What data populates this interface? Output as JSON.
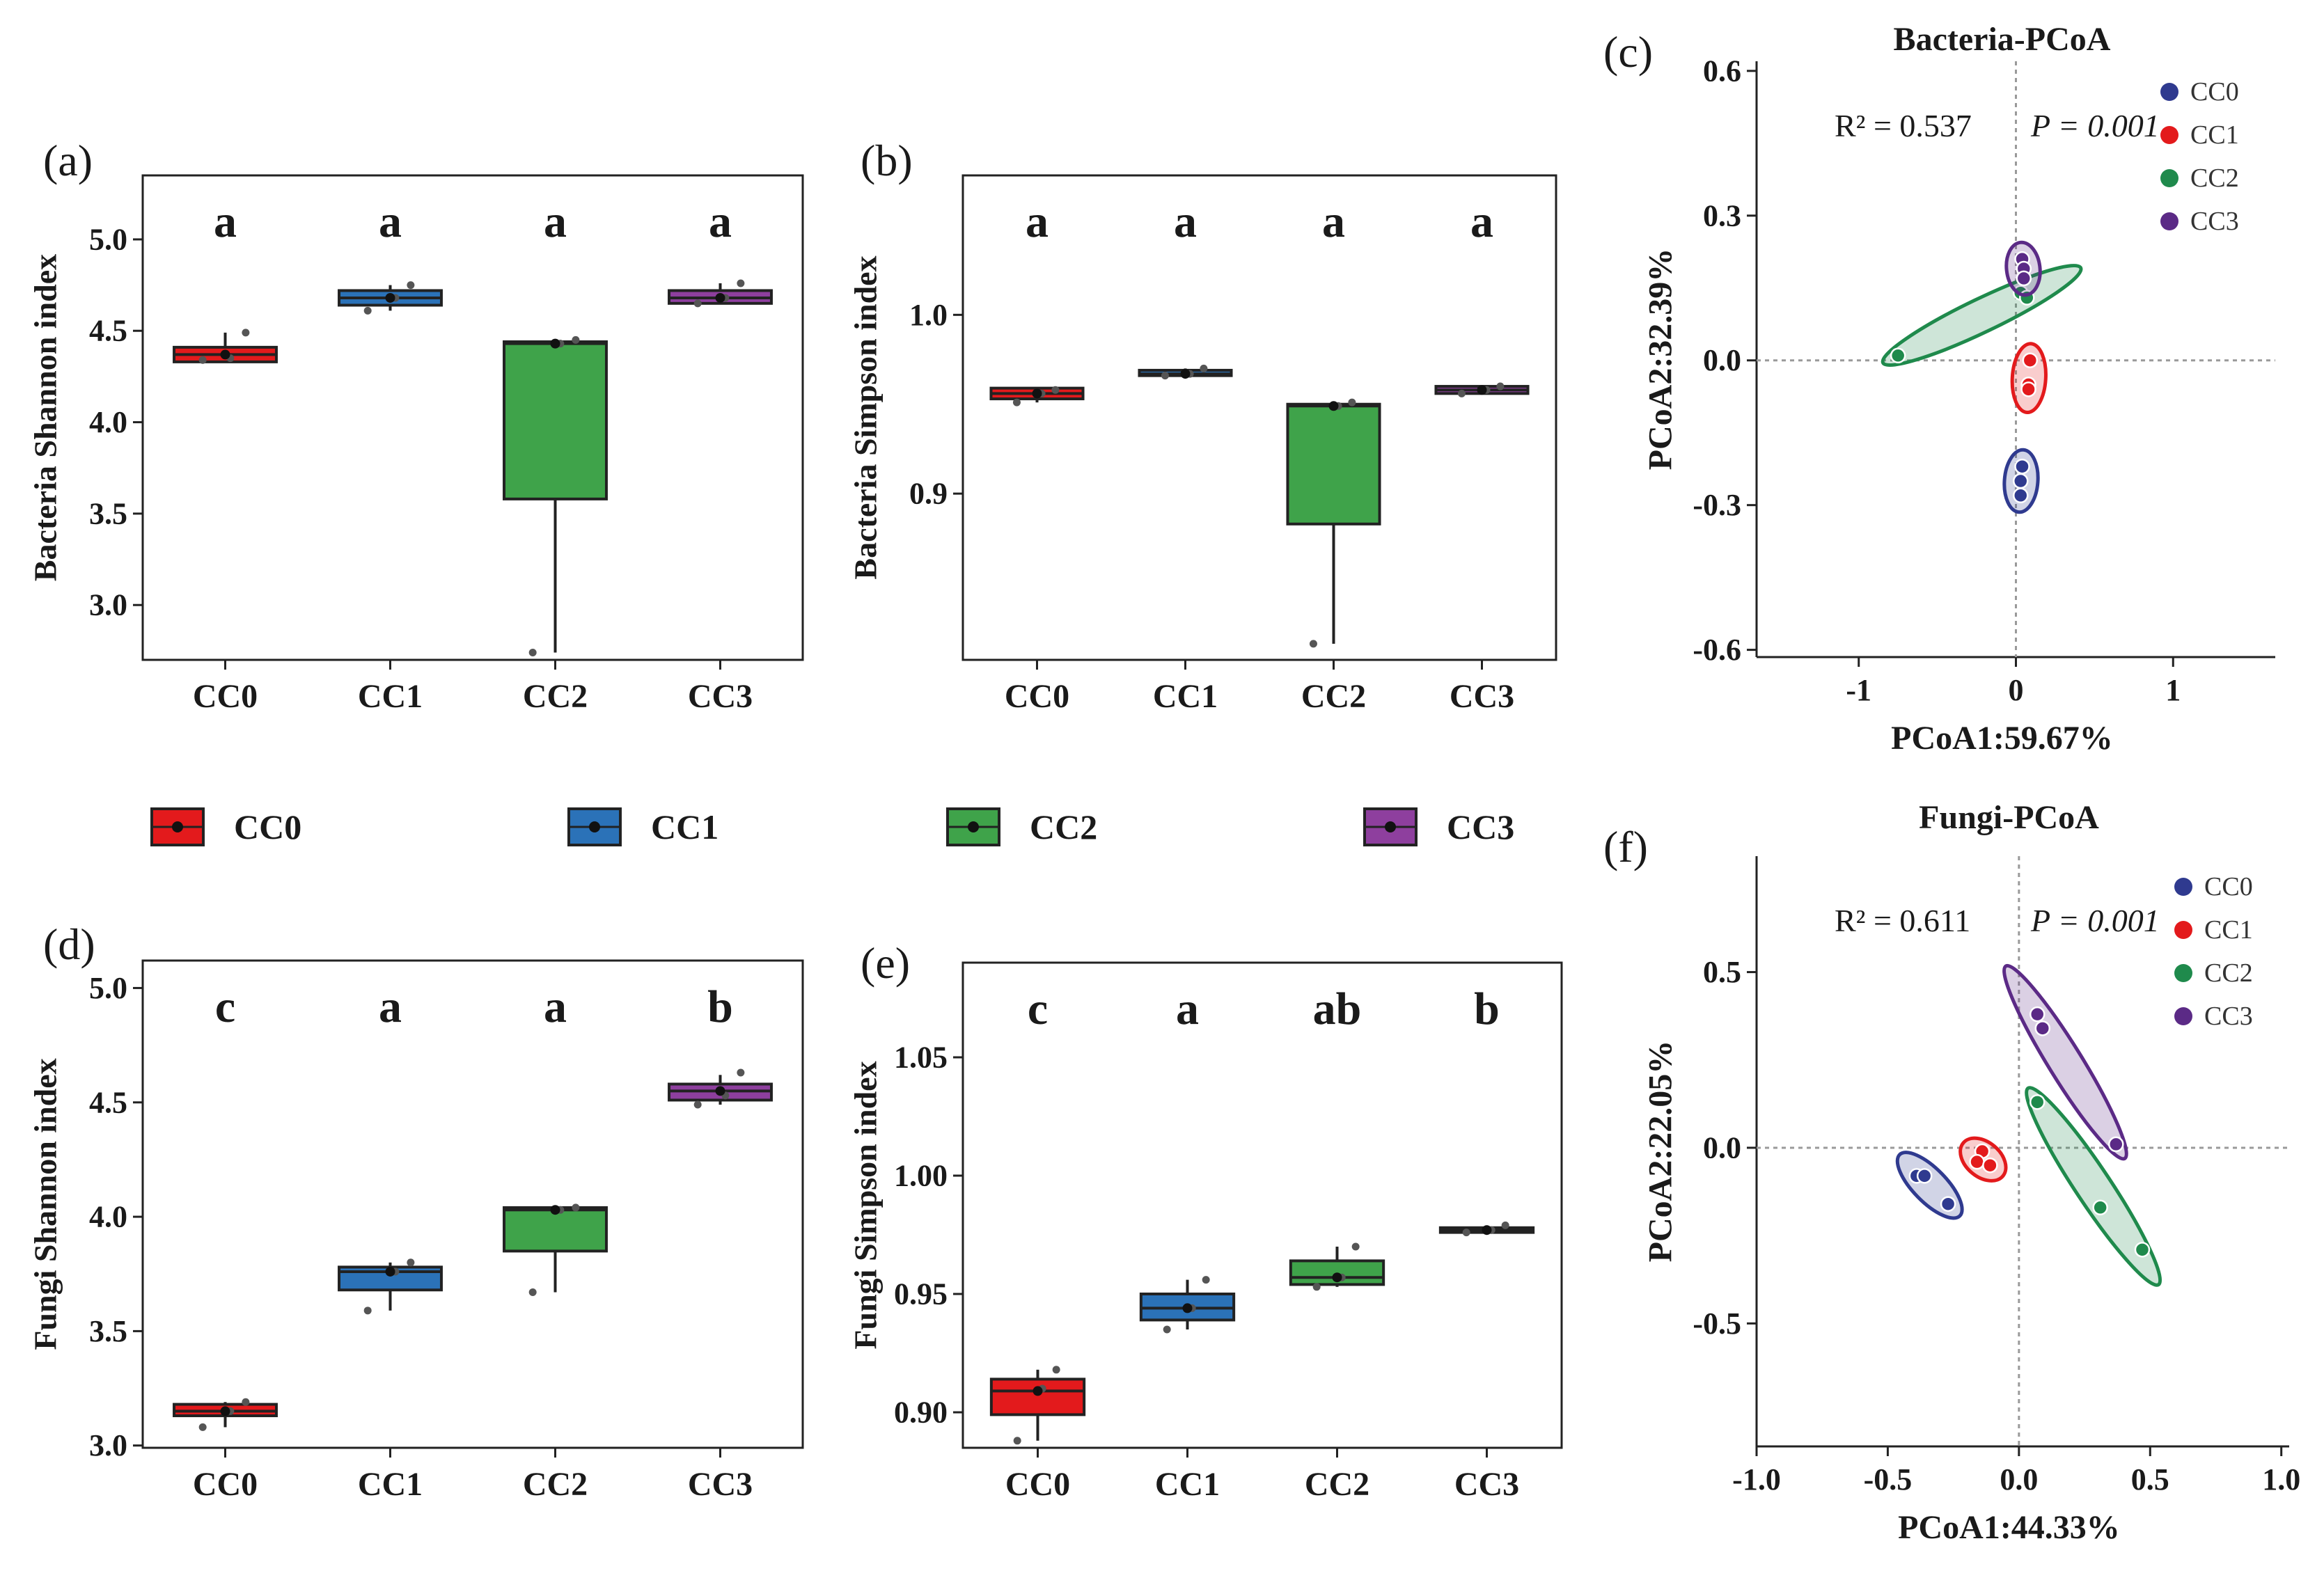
{
  "colors": {
    "CC0": "#e31a1c",
    "CC1": "#2b72b8",
    "CC2": "#3fa34a",
    "CC3": "#8e3f9e",
    "pcoa_CC0": "#2f3a8f",
    "pcoa_CC1": "#e31a1c",
    "pcoa_CC2": "#1f8a4c",
    "pcoa_CC3": "#5b2a86"
  },
  "legend": {
    "items": [
      "CC0",
      "CC1",
      "CC2",
      "CC3"
    ]
  },
  "chart_data": [
    {
      "id": "a",
      "panel_label": "(a)",
      "type": "box",
      "ylabel": "Bacteria Shannon index",
      "categories": [
        "CC0",
        "CC1",
        "CC2",
        "CC3"
      ],
      "yticks": [
        "3.0",
        "3.5",
        "4.0",
        "4.5",
        "5.0"
      ],
      "ylim": [
        2.7,
        5.35
      ],
      "letters": [
        "a",
        "a",
        "a",
        "a"
      ],
      "boxes": [
        {
          "q1": 4.33,
          "median": 4.37,
          "q3": 4.41,
          "low": 4.33,
          "high": 4.49,
          "points": [
            4.34,
            4.35,
            4.49
          ]
        },
        {
          "q1": 4.64,
          "median": 4.68,
          "q3": 4.72,
          "low": 4.61,
          "high": 4.75,
          "points": [
            4.61,
            4.68,
            4.75
          ]
        },
        {
          "q1": 3.58,
          "median": 4.43,
          "q3": 4.44,
          "low": 2.74,
          "high": 4.45,
          "points": [
            2.74,
            4.43,
            4.45
          ]
        },
        {
          "q1": 4.65,
          "median": 4.68,
          "q3": 4.72,
          "low": 4.65,
          "high": 4.76,
          "points": [
            4.65,
            4.68,
            4.76
          ]
        }
      ]
    },
    {
      "id": "b",
      "panel_label": "(b)",
      "type": "box",
      "ylabel": "Bacteria Simpson index",
      "categories": [
        "CC0",
        "CC1",
        "CC2",
        "CC3"
      ],
      "yticks": [
        "0.9",
        "1.0"
      ],
      "ylim": [
        0.807,
        1.078
      ],
      "letters": [
        "a",
        "a",
        "a",
        "a"
      ],
      "boxes": [
        {
          "q1": 0.953,
          "median": 0.956,
          "q3": 0.959,
          "low": 0.951,
          "high": 0.959,
          "points": [
            0.951,
            0.956,
            0.958
          ]
        },
        {
          "q1": 0.966,
          "median": 0.967,
          "q3": 0.969,
          "low": 0.966,
          "high": 0.97,
          "points": [
            0.966,
            0.967,
            0.97
          ]
        },
        {
          "q1": 0.883,
          "median": 0.949,
          "q3": 0.95,
          "low": 0.816,
          "high": 0.951,
          "points": [
            0.816,
            0.949,
            0.951
          ]
        },
        {
          "q1": 0.956,
          "median": 0.958,
          "q3": 0.96,
          "low": 0.956,
          "high": 0.96,
          "points": [
            0.956,
            0.958,
            0.96
          ]
        }
      ]
    },
    {
      "id": "d",
      "panel_label": "(d)",
      "type": "box",
      "ylabel": "Fungi Shannon index",
      "categories": [
        "CC0",
        "CC1",
        "CC2",
        "CC3"
      ],
      "yticks": [
        "3.0",
        "3.5",
        "4.0",
        "4.5",
        "5.0"
      ],
      "ylim": [
        2.99,
        5.12
      ],
      "letters": [
        "c",
        "a",
        "a",
        "b"
      ],
      "boxes": [
        {
          "q1": 3.13,
          "median": 3.15,
          "q3": 3.18,
          "low": 3.08,
          "high": 3.19,
          "points": [
            3.08,
            3.15,
            3.19
          ]
        },
        {
          "q1": 3.68,
          "median": 3.76,
          "q3": 3.78,
          "low": 3.59,
          "high": 3.8,
          "points": [
            3.59,
            3.76,
            3.8
          ]
        },
        {
          "q1": 3.85,
          "median": 4.03,
          "q3": 4.04,
          "low": 3.67,
          "high": 4.04,
          "points": [
            3.67,
            4.03,
            4.04
          ]
        },
        {
          "q1": 4.51,
          "median": 4.55,
          "q3": 4.58,
          "low": 4.49,
          "high": 4.62,
          "points": [
            4.49,
            4.53,
            4.63
          ]
        }
      ]
    },
    {
      "id": "e",
      "panel_label": "(e)",
      "type": "box",
      "ylabel": "Fungi Simpson index",
      "categories": [
        "CC0",
        "CC1",
        "CC2",
        "CC3"
      ],
      "yticks": [
        "0.90",
        "0.95",
        "1.00",
        "1.05"
      ],
      "ylim": [
        0.885,
        1.09
      ],
      "letters": [
        "c",
        "a",
        "ab",
        "b"
      ],
      "boxes": [
        {
          "q1": 0.899,
          "median": 0.909,
          "q3": 0.914,
          "low": 0.888,
          "high": 0.918,
          "points": [
            0.888,
            0.91,
            0.918
          ]
        },
        {
          "q1": 0.939,
          "median": 0.944,
          "q3": 0.95,
          "low": 0.935,
          "high": 0.956,
          "points": [
            0.935,
            0.944,
            0.956
          ]
        },
        {
          "q1": 0.954,
          "median": 0.957,
          "q3": 0.964,
          "low": 0.953,
          "high": 0.97,
          "points": [
            0.953,
            0.957,
            0.97
          ]
        },
        {
          "q1": 0.976,
          "median": 0.977,
          "q3": 0.978,
          "low": 0.976,
          "high": 0.979,
          "points": [
            0.976,
            0.977,
            0.979
          ]
        }
      ]
    },
    {
      "id": "c",
      "panel_label": "(c)",
      "type": "scatter",
      "title": "Bacteria-PCoA",
      "xlabel": "PCoA1:59.67%",
      "ylabel": "PCoA2:32.39%",
      "annotation_r2": "R² = 0.537",
      "annotation_p": "P = 0.001",
      "xlim": [
        -1.65,
        1.65
      ],
      "ylim": [
        -0.615,
        0.62
      ],
      "xticks": [
        -1,
        0,
        1
      ],
      "xtick_labels": [
        "-1",
        "0",
        "1"
      ],
      "yticks": [
        -0.6,
        -0.3,
        0.0,
        0.3,
        0.6
      ],
      "ytick_labels": [
        "-0.6",
        "-0.3",
        "0.0",
        "0.3",
        "0.6"
      ],
      "legend": [
        "CC0",
        "CC1",
        "CC2",
        "CC3"
      ],
      "series": [
        {
          "name": "CC0",
          "x": [
            0.04,
            0.03,
            0.03
          ],
          "y": [
            -0.22,
            -0.25,
            -0.28
          ]
        },
        {
          "name": "CC1",
          "x": [
            0.09,
            0.08,
            0.08
          ],
          "y": [
            0.0,
            -0.05,
            -0.06
          ]
        },
        {
          "name": "CC2",
          "x": [
            -0.75,
            0.03,
            0.07
          ],
          "y": [
            0.01,
            0.14,
            0.13
          ]
        },
        {
          "name": "CC3",
          "x": [
            0.04,
            0.05,
            0.05
          ],
          "y": [
            0.21,
            0.19,
            0.17
          ]
        }
      ]
    },
    {
      "id": "f",
      "panel_label": "(f)",
      "type": "scatter",
      "title": "Fungi-PCoA",
      "xlabel": "PCoA1:44.33%",
      "ylabel": "PCoA2:22.05%",
      "annotation_r2": "R² = 0.611",
      "annotation_p": "P = 0.001",
      "xlim": [
        -1.0,
        1.03
      ],
      "ylim": [
        -0.85,
        0.83
      ],
      "xticks": [
        -1.0,
        -0.5,
        0.0,
        0.5,
        1.0
      ],
      "xtick_labels": [
        "-1.0",
        "-0.5",
        "0.0",
        "0.5",
        "1.0"
      ],
      "yticks": [
        -0.5,
        0.0,
        0.5
      ],
      "ytick_labels": [
        "-0.5",
        "0.0",
        "0.5"
      ],
      "legend": [
        "CC0",
        "CC1",
        "CC2",
        "CC3"
      ],
      "series": [
        {
          "name": "CC0",
          "x": [
            -0.39,
            -0.36,
            -0.27
          ],
          "y": [
            -0.08,
            -0.08,
            -0.16
          ]
        },
        {
          "name": "CC1",
          "x": [
            -0.14,
            -0.16,
            -0.11
          ],
          "y": [
            -0.01,
            -0.04,
            -0.05
          ]
        },
        {
          "name": "CC2",
          "x": [
            0.07,
            0.31,
            0.47
          ],
          "y": [
            0.13,
            -0.17,
            -0.29
          ]
        },
        {
          "name": "CC3",
          "x": [
            0.07,
            0.09,
            0.37
          ],
          "y": [
            0.38,
            0.34,
            0.01
          ]
        }
      ]
    }
  ]
}
